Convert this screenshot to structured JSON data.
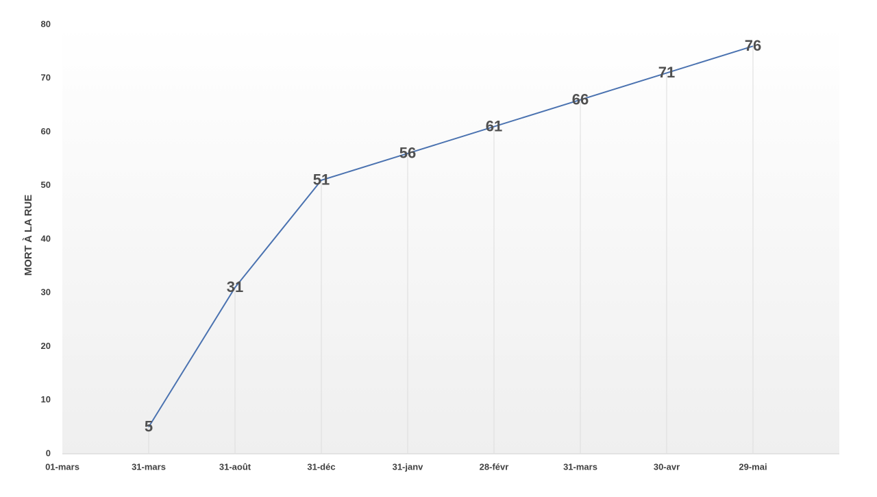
{
  "chart_data": {
    "type": "line",
    "y_label": "MORT À LA RUE",
    "categories": [
      "01-mars",
      "31-mars",
      "31-août",
      "31-déc",
      "31-janv",
      "28-févr",
      "31-mars",
      "30-avr",
      "29-mai"
    ],
    "values": [
      null,
      5,
      31,
      51,
      56,
      61,
      66,
      71,
      76
    ],
    "color": "#4a72b0",
    "ylim": [
      0,
      80
    ],
    "yticks": [
      0,
      10,
      20,
      30,
      40,
      50,
      60,
      70,
      80
    ],
    "drop_lines": true
  }
}
